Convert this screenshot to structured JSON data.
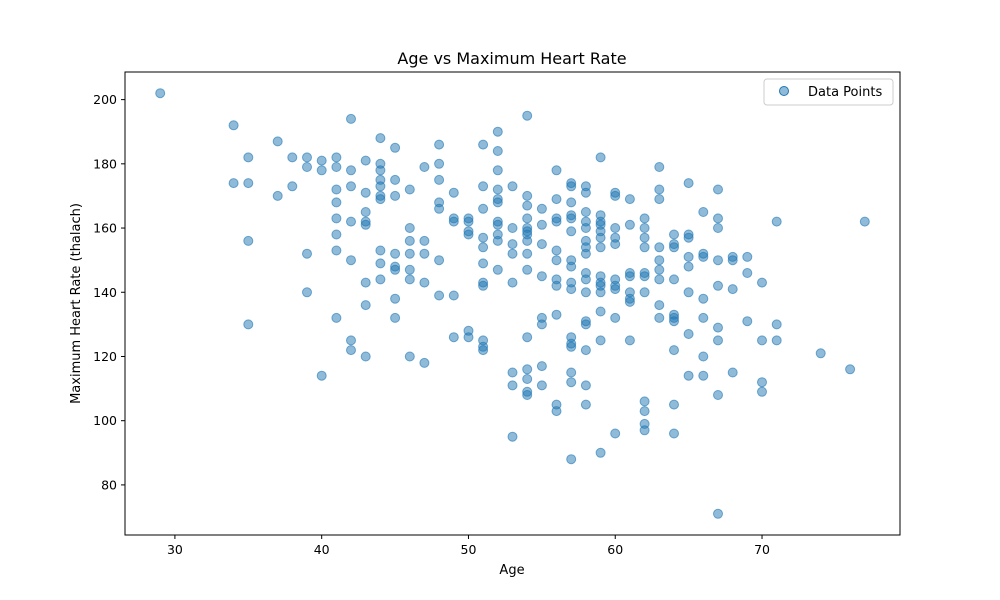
{
  "chart_data": {
    "type": "scatter",
    "title": "Age vs Maximum Heart Rate",
    "xlabel": "Age",
    "ylabel": "Maximum Heart Rate (thalach)",
    "xlim": [
      26.6,
      79.4
    ],
    "ylim": [
      64.4,
      208.6
    ],
    "xticks": [
      30,
      40,
      50,
      60,
      70
    ],
    "yticks": [
      80,
      100,
      120,
      140,
      160,
      180,
      200
    ],
    "grid": false,
    "legend": {
      "position": "top-right",
      "entries": [
        "Data Points"
      ]
    },
    "series": [
      {
        "name": "Data Points",
        "color": "#1f77b4",
        "points": [
          [
            29,
            202
          ],
          [
            34,
            192
          ],
          [
            34,
            174
          ],
          [
            35,
            182
          ],
          [
            35,
            174
          ],
          [
            35,
            156
          ],
          [
            35,
            130
          ],
          [
            37,
            187
          ],
          [
            37,
            170
          ],
          [
            38,
            182
          ],
          [
            38,
            173
          ],
          [
            39,
            182
          ],
          [
            39,
            179
          ],
          [
            39,
            152
          ],
          [
            39,
            140
          ],
          [
            40,
            181
          ],
          [
            40,
            178
          ],
          [
            40,
            114
          ],
          [
            41,
            182
          ],
          [
            41,
            179
          ],
          [
            41,
            172
          ],
          [
            41,
            168
          ],
          [
            41,
            163
          ],
          [
            41,
            158
          ],
          [
            41,
            153
          ],
          [
            41,
            132
          ],
          [
            42,
            194
          ],
          [
            42,
            178
          ],
          [
            42,
            173
          ],
          [
            42,
            162
          ],
          [
            42,
            150
          ],
          [
            42,
            125
          ],
          [
            42,
            122
          ],
          [
            43,
            181
          ],
          [
            43,
            171
          ],
          [
            43,
            165
          ],
          [
            43,
            162
          ],
          [
            43,
            161
          ],
          [
            43,
            143
          ],
          [
            43,
            136
          ],
          [
            43,
            120
          ],
          [
            44,
            188
          ],
          [
            44,
            180
          ],
          [
            44,
            178
          ],
          [
            44,
            175
          ],
          [
            44,
            173
          ],
          [
            44,
            170
          ],
          [
            44,
            169
          ],
          [
            44,
            153
          ],
          [
            44,
            149
          ],
          [
            44,
            144
          ],
          [
            45,
            185
          ],
          [
            45,
            175
          ],
          [
            45,
            170
          ],
          [
            45,
            152
          ],
          [
            45,
            148
          ],
          [
            45,
            147
          ],
          [
            45,
            138
          ],
          [
            45,
            132
          ],
          [
            46,
            172
          ],
          [
            46,
            160
          ],
          [
            46,
            156
          ],
          [
            46,
            152
          ],
          [
            46,
            147
          ],
          [
            46,
            144
          ],
          [
            46,
            120
          ],
          [
            47,
            179
          ],
          [
            47,
            156
          ],
          [
            47,
            152
          ],
          [
            47,
            143
          ],
          [
            47,
            118
          ],
          [
            48,
            186
          ],
          [
            48,
            180
          ],
          [
            48,
            175
          ],
          [
            48,
            168
          ],
          [
            48,
            166
          ],
          [
            48,
            150
          ],
          [
            48,
            139
          ],
          [
            49,
            171
          ],
          [
            49,
            163
          ],
          [
            49,
            162
          ],
          [
            49,
            139
          ],
          [
            49,
            126
          ],
          [
            50,
            163
          ],
          [
            50,
            162
          ],
          [
            50,
            159
          ],
          [
            50,
            158
          ],
          [
            50,
            128
          ],
          [
            50,
            126
          ],
          [
            51,
            186
          ],
          [
            51,
            173
          ],
          [
            51,
            166
          ],
          [
            51,
            157
          ],
          [
            51,
            154
          ],
          [
            51,
            149
          ],
          [
            51,
            143
          ],
          [
            51,
            142
          ],
          [
            51,
            125
          ],
          [
            51,
            123
          ],
          [
            51,
            122
          ],
          [
            52,
            190
          ],
          [
            52,
            184
          ],
          [
            52,
            178
          ],
          [
            52,
            172
          ],
          [
            52,
            169
          ],
          [
            52,
            168
          ],
          [
            52,
            162
          ],
          [
            52,
            161
          ],
          [
            52,
            158
          ],
          [
            52,
            156
          ],
          [
            52,
            147
          ],
          [
            53,
            173
          ],
          [
            53,
            160
          ],
          [
            53,
            155
          ],
          [
            53,
            152
          ],
          [
            53,
            143
          ],
          [
            53,
            115
          ],
          [
            53,
            111
          ],
          [
            53,
            95
          ],
          [
            54,
            195
          ],
          [
            54,
            170
          ],
          [
            54,
            167
          ],
          [
            54,
            163
          ],
          [
            54,
            160
          ],
          [
            54,
            159
          ],
          [
            54,
            158
          ],
          [
            54,
            156
          ],
          [
            54,
            152
          ],
          [
            54,
            147
          ],
          [
            54,
            126
          ],
          [
            54,
            116
          ],
          [
            54,
            113
          ],
          [
            54,
            109
          ],
          [
            54,
            108
          ],
          [
            55,
            166
          ],
          [
            55,
            161
          ],
          [
            55,
            155
          ],
          [
            55,
            145
          ],
          [
            55,
            132
          ],
          [
            55,
            130
          ],
          [
            55,
            117
          ],
          [
            55,
            111
          ],
          [
            56,
            178
          ],
          [
            56,
            169
          ],
          [
            56,
            163
          ],
          [
            56,
            162
          ],
          [
            56,
            153
          ],
          [
            56,
            150
          ],
          [
            56,
            144
          ],
          [
            56,
            142
          ],
          [
            56,
            133
          ],
          [
            56,
            105
          ],
          [
            56,
            103
          ],
          [
            57,
            174
          ],
          [
            57,
            173
          ],
          [
            57,
            168
          ],
          [
            57,
            164
          ],
          [
            57,
            163
          ],
          [
            57,
            159
          ],
          [
            57,
            150
          ],
          [
            57,
            148
          ],
          [
            57,
            143
          ],
          [
            57,
            141
          ],
          [
            57,
            126
          ],
          [
            57,
            124
          ],
          [
            57,
            123
          ],
          [
            57,
            115
          ],
          [
            57,
            112
          ],
          [
            57,
            88
          ],
          [
            58,
            173
          ],
          [
            58,
            171
          ],
          [
            58,
            165
          ],
          [
            58,
            162
          ],
          [
            58,
            160
          ],
          [
            58,
            156
          ],
          [
            58,
            154
          ],
          [
            58,
            152
          ],
          [
            58,
            146
          ],
          [
            58,
            144
          ],
          [
            58,
            140
          ],
          [
            58,
            131
          ],
          [
            58,
            130
          ],
          [
            58,
            122
          ],
          [
            58,
            111
          ],
          [
            58,
            105
          ],
          [
            59,
            182
          ],
          [
            59,
            164
          ],
          [
            59,
            162
          ],
          [
            59,
            161
          ],
          [
            59,
            159
          ],
          [
            59,
            157
          ],
          [
            59,
            154
          ],
          [
            59,
            145
          ],
          [
            59,
            143
          ],
          [
            59,
            142
          ],
          [
            59,
            140
          ],
          [
            59,
            134
          ],
          [
            59,
            125
          ],
          [
            59,
            90
          ],
          [
            60,
            171
          ],
          [
            60,
            170
          ],
          [
            60,
            160
          ],
          [
            60,
            157
          ],
          [
            60,
            155
          ],
          [
            60,
            144
          ],
          [
            60,
            142
          ],
          [
            60,
            141
          ],
          [
            60,
            132
          ],
          [
            60,
            96
          ],
          [
            61,
            169
          ],
          [
            61,
            161
          ],
          [
            61,
            146
          ],
          [
            61,
            145
          ],
          [
            61,
            140
          ],
          [
            61,
            138
          ],
          [
            61,
            137
          ],
          [
            61,
            125
          ],
          [
            62,
            163
          ],
          [
            62,
            160
          ],
          [
            62,
            157
          ],
          [
            62,
            154
          ],
          [
            62,
            146
          ],
          [
            62,
            145
          ],
          [
            62,
            140
          ],
          [
            62,
            106
          ],
          [
            62,
            103
          ],
          [
            62,
            99
          ],
          [
            62,
            97
          ],
          [
            63,
            179
          ],
          [
            63,
            172
          ],
          [
            63,
            169
          ],
          [
            63,
            154
          ],
          [
            63,
            150
          ],
          [
            63,
            147
          ],
          [
            63,
            144
          ],
          [
            63,
            136
          ],
          [
            63,
            132
          ],
          [
            64,
            158
          ],
          [
            64,
            155
          ],
          [
            64,
            154
          ],
          [
            64,
            144
          ],
          [
            64,
            133
          ],
          [
            64,
            132
          ],
          [
            64,
            131
          ],
          [
            64,
            122
          ],
          [
            64,
            105
          ],
          [
            64,
            96
          ],
          [
            65,
            174
          ],
          [
            65,
            158
          ],
          [
            65,
            157
          ],
          [
            65,
            151
          ],
          [
            65,
            148
          ],
          [
            65,
            140
          ],
          [
            65,
            127
          ],
          [
            65,
            114
          ],
          [
            66,
            165
          ],
          [
            66,
            152
          ],
          [
            66,
            151
          ],
          [
            66,
            138
          ],
          [
            66,
            132
          ],
          [
            66,
            120
          ],
          [
            66,
            114
          ],
          [
            67,
            172
          ],
          [
            67,
            163
          ],
          [
            67,
            160
          ],
          [
            67,
            150
          ],
          [
            67,
            142
          ],
          [
            67,
            129
          ],
          [
            67,
            125
          ],
          [
            67,
            108
          ],
          [
            67,
            71
          ],
          [
            68,
            151
          ],
          [
            68,
            150
          ],
          [
            68,
            141
          ],
          [
            68,
            115
          ],
          [
            69,
            151
          ],
          [
            69,
            146
          ],
          [
            69,
            131
          ],
          [
            70,
            143
          ],
          [
            70,
            125
          ],
          [
            70,
            112
          ],
          [
            70,
            109
          ],
          [
            71,
            162
          ],
          [
            71,
            130
          ],
          [
            71,
            125
          ],
          [
            74,
            121
          ],
          [
            76,
            116
          ],
          [
            77,
            162
          ]
        ]
      }
    ]
  }
}
